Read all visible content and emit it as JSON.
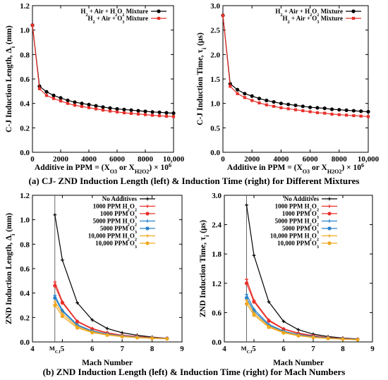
{
  "captions": {
    "a": "(a) CJ- ZND Induction Length (left) & Induction Time (right) for Different Mixtures",
    "b": "(b) ZND Induction Length (left) & Induction Time (right) for Mach Numbers"
  },
  "chart_data": [
    {
      "id": "a-left",
      "type": "line",
      "xlabel": "Additive in PPM = (X_O3 or X_H2O2) × 10^6",
      "ylabel": "C-J Induction Length, Δi (mm)",
      "xlim": [
        0,
        10000
      ],
      "ylim": [
        0,
        1.2
      ],
      "xticks": [
        0,
        2000,
        4000,
        6000,
        8000,
        10000
      ],
      "xtick_labels": [
        "0",
        "2000",
        "4000",
        "6000",
        "8000",
        "10,000"
      ],
      "yticks": [
        0,
        0.2,
        0.4,
        0.6,
        0.8,
        1.0,
        1.2
      ],
      "ytick_labels": [
        "0.0",
        "0.2",
        "0.4",
        "0.6",
        "0.8",
        "1.0",
        "1.2"
      ],
      "legend_position": "top-right",
      "x": [
        0,
        500,
        1000,
        1500,
        2000,
        2500,
        3000,
        3500,
        4000,
        4500,
        5000,
        5500,
        6000,
        6500,
        7000,
        7500,
        8000,
        8500,
        9000,
        9500,
        10000
      ],
      "series": [
        {
          "name": "H2 + Air + H2O2 Mixture",
          "color": "#000000",
          "marker": "circle",
          "values": [
            1.04,
            0.54,
            0.495,
            0.465,
            0.445,
            0.425,
            0.41,
            0.4,
            0.39,
            0.38,
            0.37,
            0.362,
            0.355,
            0.35,
            0.345,
            0.34,
            0.335,
            0.33,
            0.327,
            0.323,
            0.32
          ]
        },
        {
          "name": "H2 + Air + O3 Mixture",
          "color": "#e8302a",
          "marker": "square",
          "values": [
            1.04,
            0.52,
            0.465,
            0.44,
            0.42,
            0.4,
            0.385,
            0.375,
            0.365,
            0.355,
            0.345,
            0.337,
            0.33,
            0.323,
            0.318,
            0.313,
            0.308,
            0.303,
            0.299,
            0.295,
            0.292
          ]
        }
      ]
    },
    {
      "id": "a-right",
      "type": "line",
      "xlabel": "Additive in PPM = (X_O3 or X_H2O2) × 10^6",
      "ylabel": "C-J Induction Time, τi (μs)",
      "xlim": [
        0,
        10000
      ],
      "ylim": [
        0,
        3.0
      ],
      "xticks": [
        0,
        2000,
        4000,
        6000,
        8000,
        10000
      ],
      "xtick_labels": [
        "0",
        "2000",
        "4000",
        "6000",
        "8000",
        "10,000"
      ],
      "yticks": [
        0,
        0.5,
        1.0,
        1.5,
        2.0,
        2.5,
        3.0
      ],
      "ytick_labels": [
        "0.0",
        "0.5",
        "1.0",
        "1.5",
        "2.0",
        "2.5",
        "3.0"
      ],
      "legend_position": "top-right",
      "x": [
        0,
        500,
        1000,
        1500,
        2000,
        2500,
        3000,
        3500,
        4000,
        4500,
        5000,
        5500,
        6000,
        6500,
        7000,
        7500,
        8000,
        8500,
        9000,
        9500,
        10000
      ],
      "series": [
        {
          "name": "H2 + Air + H2O2 Mixture",
          "color": "#000000",
          "marker": "circle",
          "values": [
            2.8,
            1.4,
            1.28,
            1.2,
            1.15,
            1.1,
            1.06,
            1.03,
            1.0,
            0.98,
            0.96,
            0.94,
            0.92,
            0.91,
            0.9,
            0.88,
            0.87,
            0.86,
            0.85,
            0.84,
            0.83
          ]
        },
        {
          "name": "H2 + Air + O3 Mixture",
          "color": "#e8302a",
          "marker": "square",
          "values": [
            2.8,
            1.35,
            1.2,
            1.12,
            1.06,
            1.01,
            0.97,
            0.94,
            0.91,
            0.89,
            0.87,
            0.85,
            0.83,
            0.81,
            0.8,
            0.78,
            0.77,
            0.76,
            0.75,
            0.74,
            0.73
          ]
        }
      ]
    },
    {
      "id": "b-left",
      "type": "line",
      "xlabel": "Mach Number",
      "ylabel": "ZND Induction Length, Δi (mm)",
      "xlim": [
        4,
        9
      ],
      "ylim": [
        0,
        1.2
      ],
      "xticks": [
        4,
        5,
        6,
        7,
        8,
        9
      ],
      "xtick_labels": [
        "4",
        "5",
        "6",
        "7",
        "8",
        "9"
      ],
      "yticks": [
        0,
        0.2,
        0.4,
        0.6,
        0.8,
        1.0,
        1.2
      ],
      "ytick_labels": [
        "0.0",
        "0.2",
        "0.4",
        "0.6",
        "0.8",
        "1.0",
        "1.2"
      ],
      "legend_position": "top-right",
      "annotation": {
        "label": "MCJ",
        "x": 4.75
      },
      "x": [
        4.75,
        5.0,
        5.5,
        6.0,
        6.5,
        7.0,
        7.5,
        8.0,
        8.5
      ],
      "series": [
        {
          "name": "No Additives",
          "color": "#000000",
          "marker": "cross",
          "values": [
            1.04,
            0.67,
            0.32,
            0.18,
            0.11,
            0.075,
            0.055,
            0.04,
            0.03
          ]
        },
        {
          "name": "1000 PPM H2O2",
          "color": "#e8302a",
          "marker": "cross",
          "values": [
            0.49,
            0.33,
            0.17,
            0.11,
            0.075,
            0.055,
            0.045,
            0.035,
            0.03
          ]
        },
        {
          "name": "1000 PPM O3",
          "color": "#e8302a",
          "marker": "circle",
          "values": [
            0.46,
            0.32,
            0.165,
            0.105,
            0.072,
            0.053,
            0.043,
            0.034,
            0.029
          ]
        },
        {
          "name": "5000 PPM H2O2",
          "color": "#2a82c8",
          "marker": "cross",
          "values": [
            0.38,
            0.26,
            0.14,
            0.09,
            0.065,
            0.05,
            0.04,
            0.033,
            0.028
          ]
        },
        {
          "name": "5000 PPM O3",
          "color": "#2a82c8",
          "marker": "circle",
          "values": [
            0.36,
            0.25,
            0.135,
            0.087,
            0.063,
            0.048,
            0.039,
            0.032,
            0.027
          ]
        },
        {
          "name": "10,000 PPM H2O2",
          "color": "#f0a820",
          "marker": "cross",
          "values": [
            0.33,
            0.23,
            0.125,
            0.082,
            0.06,
            0.046,
            0.037,
            0.031,
            0.026
          ]
        },
        {
          "name": "10,000 PPM O3",
          "color": "#f0a820",
          "marker": "circle",
          "values": [
            0.3,
            0.21,
            0.115,
            0.076,
            0.056,
            0.043,
            0.035,
            0.029,
            0.025
          ]
        }
      ]
    },
    {
      "id": "b-right",
      "type": "line",
      "xlabel": "Mach Number",
      "ylabel": "ZND Induction Time, τi (μs)",
      "xlim": [
        4,
        9
      ],
      "ylim": [
        0,
        3.0
      ],
      "xticks": [
        4,
        5,
        6,
        7,
        8,
        9
      ],
      "xtick_labels": [
        "4",
        "5",
        "6",
        "7",
        "8",
        "9"
      ],
      "yticks": [
        0,
        0.6,
        1.2,
        1.8,
        2.4,
        3.0
      ],
      "ytick_labels": [
        "0.0",
        "0.6",
        "1.2",
        "1.8",
        "2.4",
        "3.0"
      ],
      "legend_position": "top-right",
      "annotation": {
        "label": "MCJ",
        "x": 4.75
      },
      "x": [
        4.75,
        5.0,
        5.5,
        6.0,
        6.5,
        7.0,
        7.5,
        8.0,
        8.5
      ],
      "series": [
        {
          "name": "No Additives",
          "color": "#000000",
          "marker": "cross",
          "values": [
            2.8,
            1.77,
            0.82,
            0.42,
            0.25,
            0.16,
            0.11,
            0.08,
            0.06
          ]
        },
        {
          "name": "1000 PPM H2O2",
          "color": "#e8302a",
          "marker": "cross",
          "values": [
            1.28,
            0.85,
            0.45,
            0.27,
            0.18,
            0.13,
            0.09,
            0.07,
            0.055
          ]
        },
        {
          "name": "1000 PPM O3",
          "color": "#e8302a",
          "marker": "circle",
          "values": [
            1.2,
            0.82,
            0.43,
            0.26,
            0.17,
            0.12,
            0.088,
            0.068,
            0.053
          ]
        },
        {
          "name": "5000 PPM H2O2",
          "color": "#2a82c8",
          "marker": "cross",
          "values": [
            0.97,
            0.67,
            0.36,
            0.22,
            0.15,
            0.11,
            0.082,
            0.064,
            0.05
          ]
        },
        {
          "name": "5000 PPM O3",
          "color": "#2a82c8",
          "marker": "circle",
          "values": [
            0.9,
            0.63,
            0.34,
            0.21,
            0.14,
            0.1,
            0.078,
            0.061,
            0.048
          ]
        },
        {
          "name": "10,000 PPM H2O2",
          "color": "#f0a820",
          "marker": "cross",
          "values": [
            0.85,
            0.59,
            0.32,
            0.2,
            0.135,
            0.097,
            0.074,
            0.058,
            0.046
          ]
        },
        {
          "name": "10,000 PPM O3",
          "color": "#f0a820",
          "marker": "circle",
          "values": [
            0.78,
            0.55,
            0.3,
            0.185,
            0.125,
            0.09,
            0.07,
            0.055,
            0.044
          ]
        }
      ]
    }
  ]
}
